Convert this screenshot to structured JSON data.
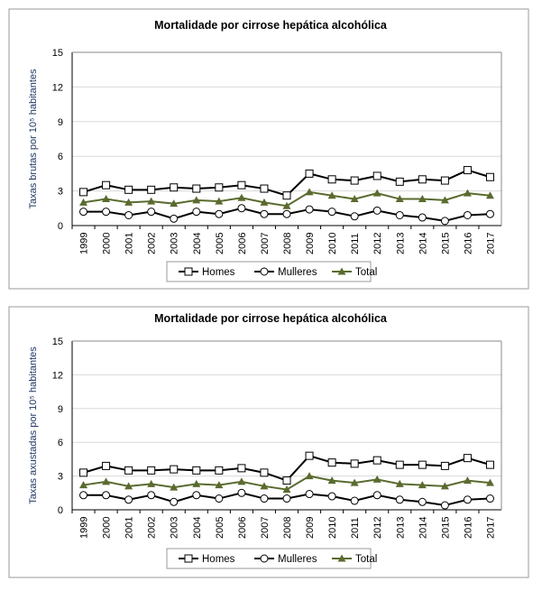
{
  "chart_data": [
    {
      "type": "line",
      "title": "Mortalidade por cirrose hepática alcohólica",
      "ylabel": "Taxas brutas por 10⁵ habitantes",
      "ylim": [
        0,
        15
      ],
      "yticks": [
        0,
        3,
        6,
        9,
        12,
        15
      ],
      "grid": true,
      "legend": "bottom",
      "categories": [
        "1999",
        "2000",
        "2001",
        "2002",
        "2003",
        "2004",
        "2005",
        "2006",
        "2007",
        "2008",
        "2009",
        "2010",
        "2011",
        "2012",
        "2013",
        "2014",
        "2015",
        "2016",
        "2017"
      ],
      "series": [
        {
          "name": "Homes",
          "marker": "square",
          "color": "#000000",
          "values": [
            2.9,
            3.5,
            3.1,
            3.1,
            3.3,
            3.2,
            3.3,
            3.5,
            3.2,
            2.6,
            4.5,
            4.0,
            3.9,
            4.3,
            3.8,
            4.0,
            3.9,
            4.8,
            4.2
          ]
        },
        {
          "name": "Mulleres",
          "marker": "circle",
          "color": "#000000",
          "values": [
            1.2,
            1.2,
            0.9,
            1.2,
            0.6,
            1.2,
            1.0,
            1.5,
            1.0,
            1.0,
            1.4,
            1.2,
            0.8,
            1.3,
            0.9,
            0.7,
            0.4,
            0.9,
            1.0
          ]
        },
        {
          "name": "Total",
          "marker": "triangle",
          "color": "#5a6b2f",
          "values": [
            2.0,
            2.3,
            2.0,
            2.1,
            1.9,
            2.2,
            2.1,
            2.4,
            2.0,
            1.7,
            2.9,
            2.6,
            2.3,
            2.8,
            2.3,
            2.3,
            2.2,
            2.8,
            2.6
          ]
        }
      ]
    },
    {
      "type": "line",
      "title": "Mortalidade por cirrose hepática alcohólica",
      "ylabel": "Taxas axustadas por 10⁵ habitantes",
      "ylim": [
        0,
        15
      ],
      "yticks": [
        0,
        3,
        6,
        9,
        12,
        15
      ],
      "grid": true,
      "legend": "bottom",
      "categories": [
        "1999",
        "2000",
        "2001",
        "2002",
        "2003",
        "2004",
        "2005",
        "2006",
        "2007",
        "2008",
        "2009",
        "2010",
        "2011",
        "2012",
        "2013",
        "2014",
        "2015",
        "2016",
        "2017"
      ],
      "series": [
        {
          "name": "Homes",
          "marker": "square",
          "color": "#000000",
          "values": [
            3.3,
            3.9,
            3.5,
            3.5,
            3.6,
            3.5,
            3.5,
            3.7,
            3.3,
            2.6,
            4.8,
            4.2,
            4.1,
            4.4,
            4.0,
            4.0,
            3.9,
            4.6,
            4.0
          ]
        },
        {
          "name": "Mulleres",
          "marker": "circle",
          "color": "#000000",
          "values": [
            1.3,
            1.3,
            0.9,
            1.3,
            0.7,
            1.3,
            1.0,
            1.5,
            1.0,
            1.0,
            1.4,
            1.2,
            0.8,
            1.3,
            0.9,
            0.7,
            0.4,
            0.9,
            1.0
          ]
        },
        {
          "name": "Total",
          "marker": "triangle",
          "color": "#5a6b2f",
          "values": [
            2.2,
            2.5,
            2.1,
            2.3,
            2.0,
            2.3,
            2.2,
            2.5,
            2.1,
            1.8,
            3.0,
            2.6,
            2.4,
            2.7,
            2.3,
            2.2,
            2.1,
            2.6,
            2.4
          ]
        }
      ]
    }
  ]
}
